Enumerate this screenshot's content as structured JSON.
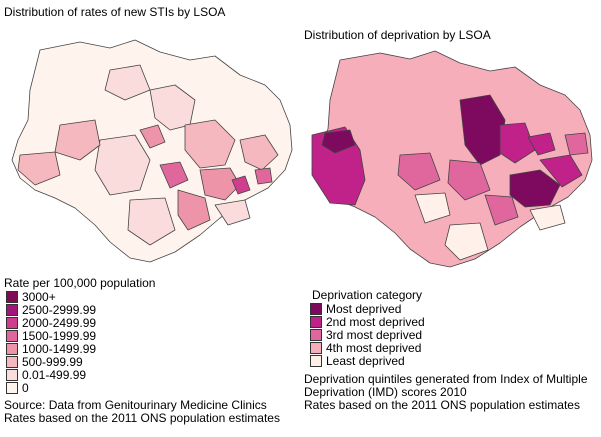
{
  "left_map": {
    "title": "Distribution of rates of new STIs by LSOA",
    "legend": {
      "title": "Rate per 100,000 population",
      "items": [
        {
          "label": "3000+",
          "color": "#800a55"
        },
        {
          "label": "2500-2999.99",
          "color": "#a0167a"
        },
        {
          "label": "2000-2499.99",
          "color": "#cf3d8f"
        },
        {
          "label": "1500-1999.99",
          "color": "#e0679b"
        },
        {
          "label": "1000-1499.99",
          "color": "#ee94a8"
        },
        {
          "label": "500-999.99",
          "color": "#f6b8bf"
        },
        {
          "label": "0.01-499.99",
          "color": "#fbdcdc"
        },
        {
          "label": "0",
          "color": "#fff3ee"
        }
      ]
    },
    "notes": [
      "Source: Data from Genitourinary Medicine Clinics",
      "Rates based on the 2011 ONS population estimates"
    ]
  },
  "right_map": {
    "title": "Distribution of deprivation by LSOA",
    "legend": {
      "title": "Deprivation category",
      "items": [
        {
          "label": "Most deprived",
          "color": "#7d0a5e"
        },
        {
          "label": "2nd most deprived",
          "color": "#c0228a"
        },
        {
          "label": "3rd most deprived",
          "color": "#e0679e"
        },
        {
          "label": "4th most deprived",
          "color": "#f6aebb"
        },
        {
          "label": "Least deprived",
          "color": "#fff0ea"
        }
      ]
    },
    "notes": [
      "Deprivation quintiles generated from Index of Multiple",
      "Deprivation (IMD) scores 2010",
      "Rates based on the 2011 ONS population estimates"
    ]
  }
}
